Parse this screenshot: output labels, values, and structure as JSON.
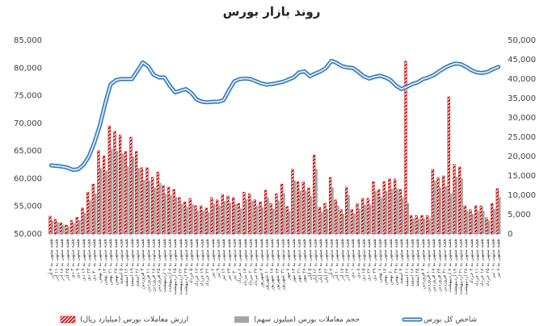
{
  "chart_data": {
    "type": "bar",
    "title": "روند بازار بورس",
    "categories": [
      "هفته منتهی به ۴ آذر",
      "هفته منتهی به ۱۱ آذر",
      "هفته منتهی به ۱۸ آذر",
      "هفته منتهی به ۲۵ آذر",
      "هفته منتهی به ۲ دی",
      "هفته منتهی به ۹ دی",
      "هفته منتهی به ۱۶ دی",
      "هفته منتهی به ۲۳ دی",
      "هفته منتهی به ۳۰ دی",
      "هفته منتهی به ۷ بهمن",
      "هفته منتهی به ۱۴ بهمن",
      "هفته منتهی به ۲۱ بهمن",
      "هفته منتهی به ۲۸ بهمن",
      "هفته منتهی به ۵ اسفند",
      "هفته منتهی به ۱۲ اسفند",
      "هفته منتهی به ۱۹ اسفند",
      "هفته منتهی به ۲۶ اسفند",
      "هفته منتهی به ۴ فروردین",
      "هفته منتهی به ۱۱ فروردین",
      "هفته منتهی به ۱۸ فروردین",
      "هفته منتهی به ۲۵ فروردین",
      "هفته منتهی به ۱ اردیبهشت",
      "هفته منتهی به ۸ اردیبهشت",
      "هفته منتهی به ۱۵ اردیبهشت",
      "هفته منتهی به ۲۲ اردیبهشت",
      "هفته منتهی به ۲۹ اردیبهشت",
      "هفته منتهی به ۵ خرداد",
      "هفته منتهی به ۱۲ خرداد",
      "هفته منتهی به ۱۹ خرداد",
      "هفته منتهی به ۲۶ خرداد",
      "هفته منتهی به ۲ تیر",
      "هفته منتهی به ۹ تیر",
      "هفته منتهی به ۱۶ تیر",
      "هفته منتهی به ۲۳ تیر",
      "هفته منتهی به ۳۰ تیر",
      "هفته منتهی به ۶ مرداد",
      "هفته منتهی به ۱۳ مرداد",
      "هفته منتهی به ۲۰ مرداد",
      "هفته منتهی به ۲۷ مرداد",
      "هفته منتهی به ۳ شهریور",
      "هفته منتهی به ۱۰ شهریور",
      "هفته منتهی به ۱۷ شهریور",
      "هفته منتهی به ۲۴ شهریور",
      "هفته منتهی به ۳۱ شهریور",
      "هفته منتهی به ۷ مهر",
      "هفته منتهی به ۱۴ مهر",
      "هفته منتهی به ۲۱ مهر",
      "هفته منتهی به ۲۸ مهر",
      "هفته منتهی به ۵ آبان",
      "هفته منتهی به ۱۲ آبان",
      "هفته منتهی به ۱۹ آبان",
      "هفته منتهی به ۲۶ آبان",
      "هفته منتهی به ۳ آذر",
      "هفته منتهی به ۱۰ آذر",
      "هفته منتهی به ۱۷ آذر",
      "هفته منتهی به ۲۴ آذر",
      "هفته منتهی به ۱ دی",
      "هفته منتهی به ۸ دی",
      "هفته منتهی به ۱۵ دی",
      "هفته منتهی به ۲۲ دی",
      "هفته منتهی به ۲۹ دی",
      "هفته منتهی به ۶ بهمن",
      "هفته منتهی به ۱۳ بهمن",
      "هفته منتهی به ۲۰ بهمن",
      "هفته منتهی به ۲۷ بهمن",
      "هفته منتهی به ۴ اسفند",
      "هفته منتهی به ۱۱ اسفند",
      "هفته منتهی به ۱۸ اسفند",
      "هفته منتهی به ۲۵ اسفند",
      "هفته منتهی به ۳ فروردین",
      "هفته منتهی به ۱۰ فروردین",
      "هفته منتهی به ۱۷ فروردین",
      "هفته منتهی به ۲۴ فروردین",
      "هفته منتهی به ۳۱ فروردین",
      "هفته منتهی به ۷ اردیبهشت",
      "هفته منتهی به ۱۴ اردیبهشت",
      "هفته منتهی به ۲۱ اردیبهشت",
      "هفته منتهی به ۲۸ اردیبهشت",
      "هفته منتهی به ۴ خرداد",
      "هفته منتهی به ۱۱ خرداد",
      "هفته منتهی به ۱۸ خرداد",
      "هفته منتهی به ۲۵ خرداد",
      "هفته منتهی به ۱ تیر",
      "هفته منتهی به ۸ تیر"
    ],
    "series": [
      {
        "name": "ارزش معاملات بورس (میلیارد ریال)",
        "type": "bar",
        "axis": "y2",
        "color": "#c00000",
        "hatch": true,
        "values": [
          4600,
          3800,
          2900,
          2300,
          3500,
          4300,
          6700,
          10800,
          12900,
          21500,
          20200,
          27900,
          26500,
          25600,
          21300,
          25000,
          21300,
          17100,
          17100,
          14600,
          16000,
          12500,
          12100,
          11500,
          9400,
          8300,
          9200,
          7300,
          7300,
          6700,
          9400,
          8800,
          10200,
          9800,
          9400,
          7900,
          10800,
          10400,
          8800,
          8300,
          11300,
          7900,
          10400,
          12900,
          7100,
          16700,
          13500,
          13500,
          11900,
          20400,
          6900,
          7900,
          14600,
          8800,
          6300,
          12100,
          6300,
          7900,
          9200,
          9200,
          13500,
          11500,
          13500,
          14200,
          14200,
          11500,
          44600,
          4800,
          4800,
          4800,
          4800,
          16700,
          14600,
          15000,
          35400,
          18000,
          17300,
          7300,
          6300,
          7300,
          7300,
          4200,
          7900,
          11700
        ]
      },
      {
        "name": "حجم معاملات بورس (میلیون سهم)",
        "type": "bar",
        "axis": "y2",
        "color": "#a5a5a5",
        "values": [
          3500,
          3000,
          2400,
          2000,
          2800,
          3600,
          5500,
          8700,
          10500,
          17000,
          16300,
          22000,
          21400,
          20800,
          17500,
          20000,
          17000,
          14000,
          13800,
          12000,
          13200,
          10400,
          10000,
          9500,
          7800,
          7000,
          7700,
          6100,
          6000,
          5600,
          7800,
          7300,
          8500,
          8100,
          7800,
          6600,
          9000,
          8600,
          7300,
          6900,
          9400,
          6500,
          8600,
          10600,
          5900,
          13800,
          11200,
          11100,
          9800,
          16800,
          5800,
          6500,
          12000,
          7300,
          5200,
          10000,
          5300,
          6500,
          7600,
          7600,
          11100,
          9500,
          11100,
          11700,
          11700,
          9500,
          8000,
          4000,
          4000,
          4000,
          4000,
          13800,
          12000,
          12400,
          10500,
          14800,
          14300,
          6000,
          5200,
          6000,
          6000,
          3500,
          6500,
          9600
        ]
      },
      {
        "name": "شاخص کل بورس",
        "type": "line",
        "color": "#2e75b6",
        "values": [
          62400,
          62300,
          62200,
          62000,
          61600,
          61700,
          62500,
          64000,
          66500,
          69500,
          73500,
          77000,
          77800,
          78000,
          78000,
          78000,
          79500,
          81000,
          80300,
          78800,
          78300,
          78300,
          76800,
          75600,
          75900,
          76200,
          75500,
          74300,
          73900,
          73800,
          73900,
          73900,
          74200,
          76000,
          77600,
          78000,
          78100,
          78000,
          77600,
          77200,
          77000,
          77100,
          77300,
          77500,
          77900,
          78300,
          79200,
          79400,
          78500,
          79000,
          79400,
          80000,
          81300,
          80900,
          80300,
          80100,
          80000,
          79300,
          78500,
          78100,
          78400,
          78600,
          78300,
          77800,
          76800,
          76200,
          76600,
          77100,
          77400,
          78000,
          78300,
          78700,
          79400,
          80000,
          80500,
          80800,
          80700,
          80200,
          79600,
          79200,
          79100,
          79300,
          79800,
          80200
        ]
      }
    ],
    "ylim": [
      50000,
      85000
    ],
    "yticks": [
      {
        "value": 50000,
        "label": "50,000"
      },
      {
        "value": 55000,
        "label": "55,000"
      },
      {
        "value": 60000,
        "label": "60,000"
      },
      {
        "value": 65000,
        "label": "65,000"
      },
      {
        "value": 70000,
        "label": "70,000"
      },
      {
        "value": 75000,
        "label": "75,000"
      },
      {
        "value": 80000,
        "label": "80,000"
      },
      {
        "value": 85000,
        "label": "85,000"
      }
    ],
    "y2lim": [
      0,
      50000
    ],
    "y2ticks": [
      0,
      {
        "value": 5000,
        "label": "5,000"
      },
      {
        "value": 10000,
        "label": "10,000"
      },
      {
        "value": 15000,
        "label": "15,000"
      },
      {
        "value": 20000,
        "label": "20,000"
      },
      {
        "value": 25000,
        "label": "25,000"
      },
      {
        "value": 30000,
        "label": "30,000"
      },
      {
        "value": 35000,
        "label": "35,000"
      },
      {
        "value": 40000,
        "label": "40,000"
      },
      {
        "value": 45000,
        "label": "45,000"
      },
      {
        "value": 50000,
        "label": "50,000"
      }
    ]
  }
}
